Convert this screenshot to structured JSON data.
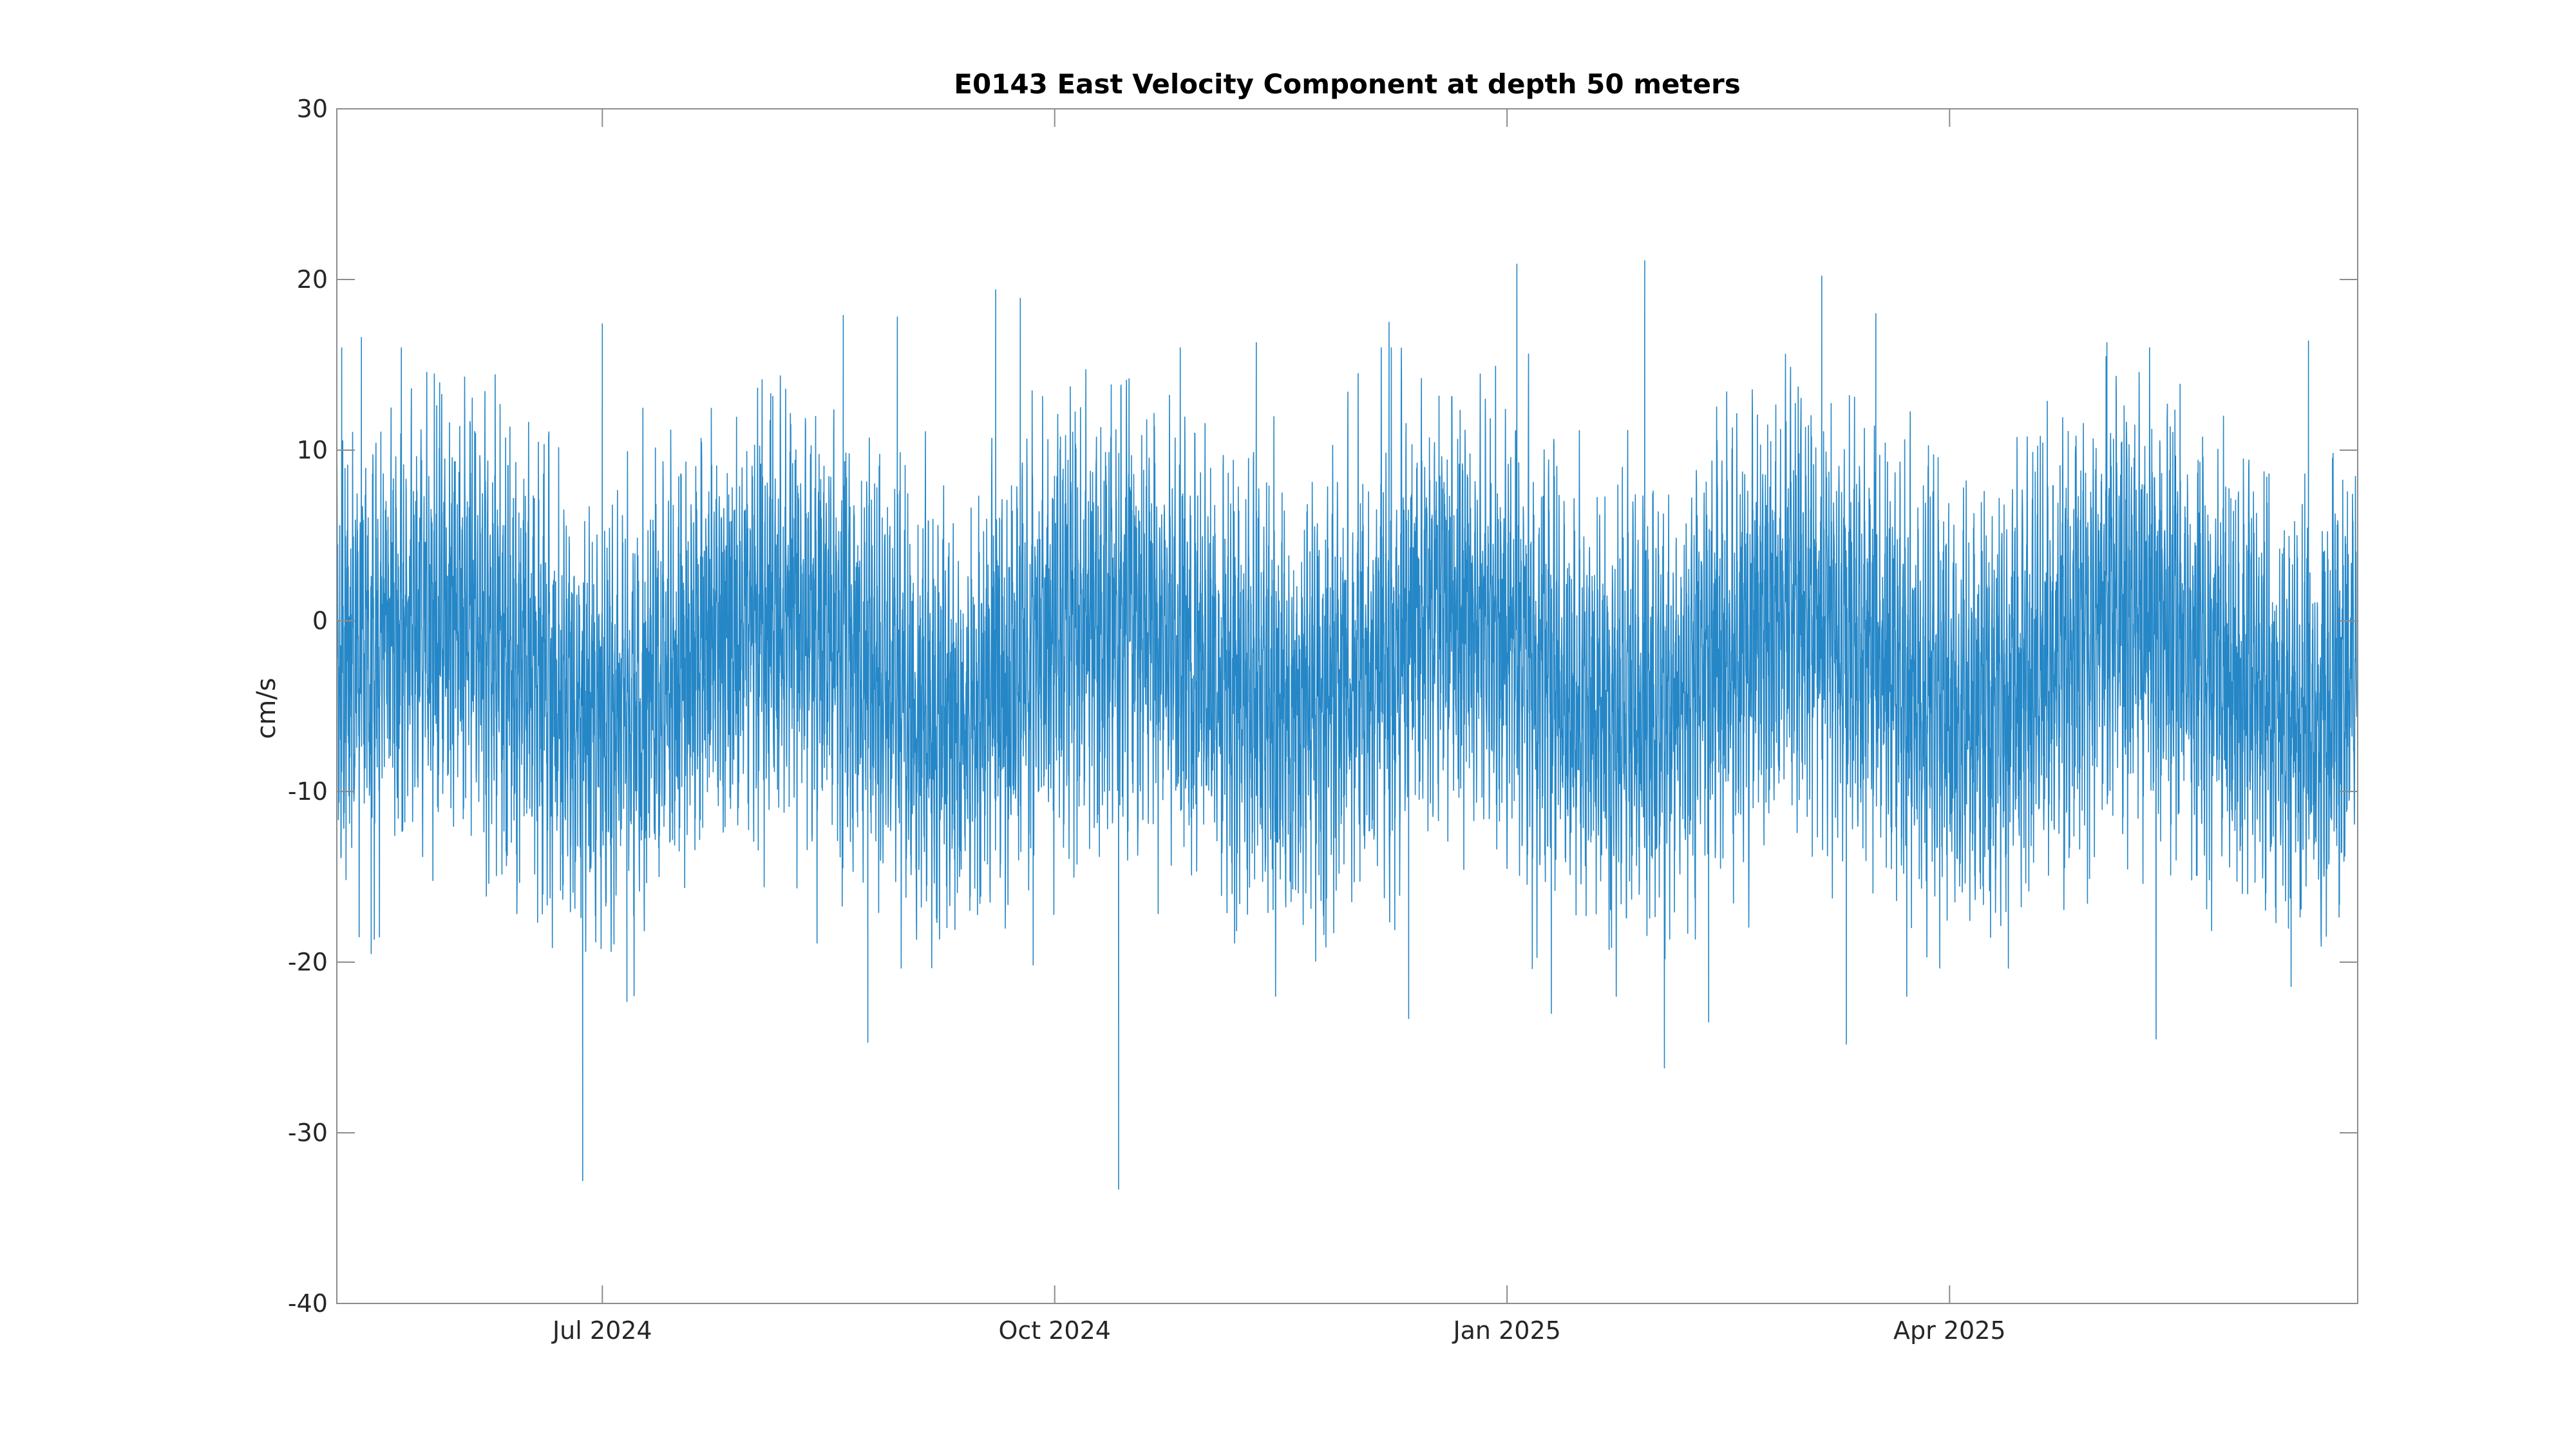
{
  "chart_data": {
    "type": "line",
    "title": "E0143 East Velocity Component at depth 50 meters",
    "xlabel": "",
    "ylabel": "cm/s",
    "x_start": "2024-05-08",
    "x_end": "2025-06-23",
    "xlim": [
      "2024-05-08",
      "2025-06-23"
    ],
    "ylim": [
      -40,
      30
    ],
    "yticks": [
      -40,
      -30,
      -20,
      -10,
      0,
      10,
      20,
      30
    ],
    "ytick_labels": [
      "-40",
      "-30",
      "-20",
      "-10",
      "0",
      "10",
      "20",
      "30"
    ],
    "xticks": [
      {
        "date": "2024-07-01",
        "label": "Jul 2024"
      },
      {
        "date": "2024-10-01",
        "label": "Oct 2024"
      },
      {
        "date": "2025-01-01",
        "label": "Jan 2025"
      },
      {
        "date": "2025-04-01",
        "label": "Apr 2025"
      }
    ],
    "grid": false,
    "line_color": "#0072BD",
    "series": [
      {
        "name": "",
        "sampling": "hourly",
        "points": [
          {
            "x": "2024-05-09",
            "y": 16
          },
          {
            "x": "2024-05-13",
            "y": 16.6
          },
          {
            "x": "2024-05-15",
            "y": -19.5
          },
          {
            "x": "2024-06-27",
            "y": -32.8
          },
          {
            "x": "2024-07-01",
            "y": 17.4
          },
          {
            "x": "2024-07-06",
            "y": -22.3
          },
          {
            "x": "2024-08-19",
            "y": 17.9
          },
          {
            "x": "2024-08-24",
            "y": -24.7
          },
          {
            "x": "2024-08-30",
            "y": 17.8
          },
          {
            "x": "2024-09-19",
            "y": 19.4
          },
          {
            "x": "2024-09-24",
            "y": 18.9
          },
          {
            "x": "2024-10-14",
            "y": -33.3
          },
          {
            "x": "2024-11-11",
            "y": 16.3
          },
          {
            "x": "2024-12-08",
            "y": 17.5
          },
          {
            "x": "2024-12-12",
            "y": -23.3
          },
          {
            "x": "2025-01-03",
            "y": 20.9
          },
          {
            "x": "2025-01-10",
            "y": -23.0
          },
          {
            "x": "2025-01-29",
            "y": 21.1
          },
          {
            "x": "2025-02-02",
            "y": -26.2
          },
          {
            "x": "2025-02-11",
            "y": -23.5
          },
          {
            "x": "2025-03-06",
            "y": 20.2
          },
          {
            "x": "2025-03-11",
            "y": -24.8
          },
          {
            "x": "2025-03-17",
            "y": 18.0
          },
          {
            "x": "2025-05-03",
            "y": 16.3
          },
          {
            "x": "2025-05-13",
            "y": -24.5
          },
          {
            "x": "2025-06-13",
            "y": 16.4
          }
        ]
      }
    ]
  }
}
